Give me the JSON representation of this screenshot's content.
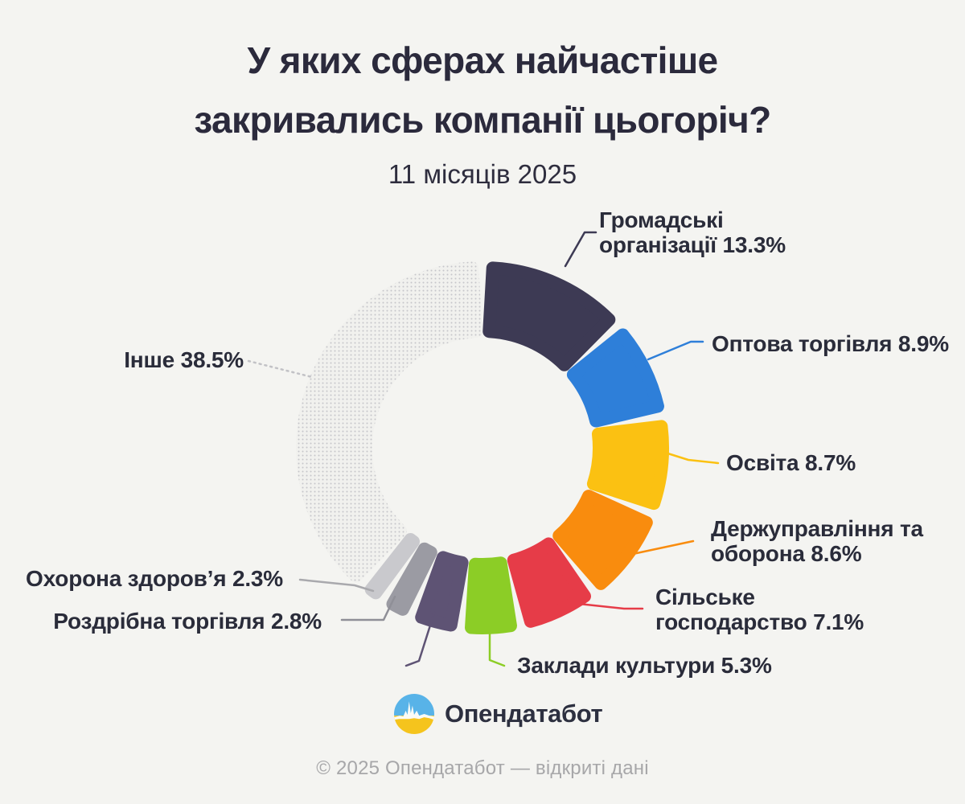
{
  "page": {
    "background_color": "#f4f4f1",
    "text_color": "#2a2c3a",
    "footer_color": "#a7a7a9"
  },
  "header": {
    "title_line1": "У яких сферах найчастіше",
    "title_line2": "закривались компанії цьогоріч?",
    "subtitle": "11 місяців 2025"
  },
  "logo": {
    "text": "Опендатабот"
  },
  "footer": {
    "text": "© 2025 Опендатабот — відкриті дані"
  },
  "chart_data": {
    "type": "pie",
    "donut": true,
    "title": "У яких сферах найчастіше закривались компанії цьогоріч?",
    "subtitle": "11 місяців 2025",
    "start_angle_deg": 0,
    "direction": "clockwise",
    "units": "%",
    "segments": [
      {
        "id": "hromadski-orhanizatsii",
        "name": "Громадські організації",
        "value": 13.3,
        "color": "#3d3a54",
        "lines": [
          "Громадські",
          "організації 13.3%"
        ]
      },
      {
        "id": "optova-torhivlia",
        "name": "Оптова торгівля",
        "value": 8.9,
        "color": "#2e7fd9",
        "lines": [
          "Оптова торгівля 8.9%"
        ]
      },
      {
        "id": "osvita",
        "name": "Освіта",
        "value": 8.7,
        "color": "#fbc112",
        "lines": [
          "Освіта 8.7%"
        ]
      },
      {
        "id": "derzhupravlinnia-ta-oborona",
        "name": "Держуправління та оборона",
        "value": 8.6,
        "color": "#f98c0e",
        "lines": [
          "Держуправління та",
          "оборона 8.6%"
        ]
      },
      {
        "id": "silske-hospodarstvo",
        "name": "Сільське господарство",
        "value": 7.1,
        "color": "#e63c48",
        "lines": [
          "Сільське",
          "господарство 7.1%"
        ]
      },
      {
        "id": "zaklady-kultury",
        "name": "Заклади культури",
        "value": 5.3,
        "color": "#8ccd26",
        "lines": [
          "Заклади культури 5.3%"
        ]
      },
      {
        "id": "unlabeled",
        "name": "",
        "value": 4.5,
        "value_estimated": true,
        "color": "#5e5374",
        "lines": []
      },
      {
        "id": "rozdribna-torhivlia",
        "name": "Роздрібна торгівля",
        "value": 2.8,
        "color": "#9b9ba3",
        "lines": [
          "Роздрібна торгівля 2.8%"
        ]
      },
      {
        "id": "okhorona-zdorovia",
        "name": "Охорона здоров’я",
        "value": 2.3,
        "color": "#c9c9cd",
        "lines": [
          "Охорона здоров’я 2.3%"
        ]
      },
      {
        "id": "inshe",
        "name": "Інше",
        "value": 38.5,
        "color": "#e9e9eb",
        "pattern": "halftone-dots",
        "lines": [
          "Інше 38.5%"
        ]
      }
    ]
  }
}
